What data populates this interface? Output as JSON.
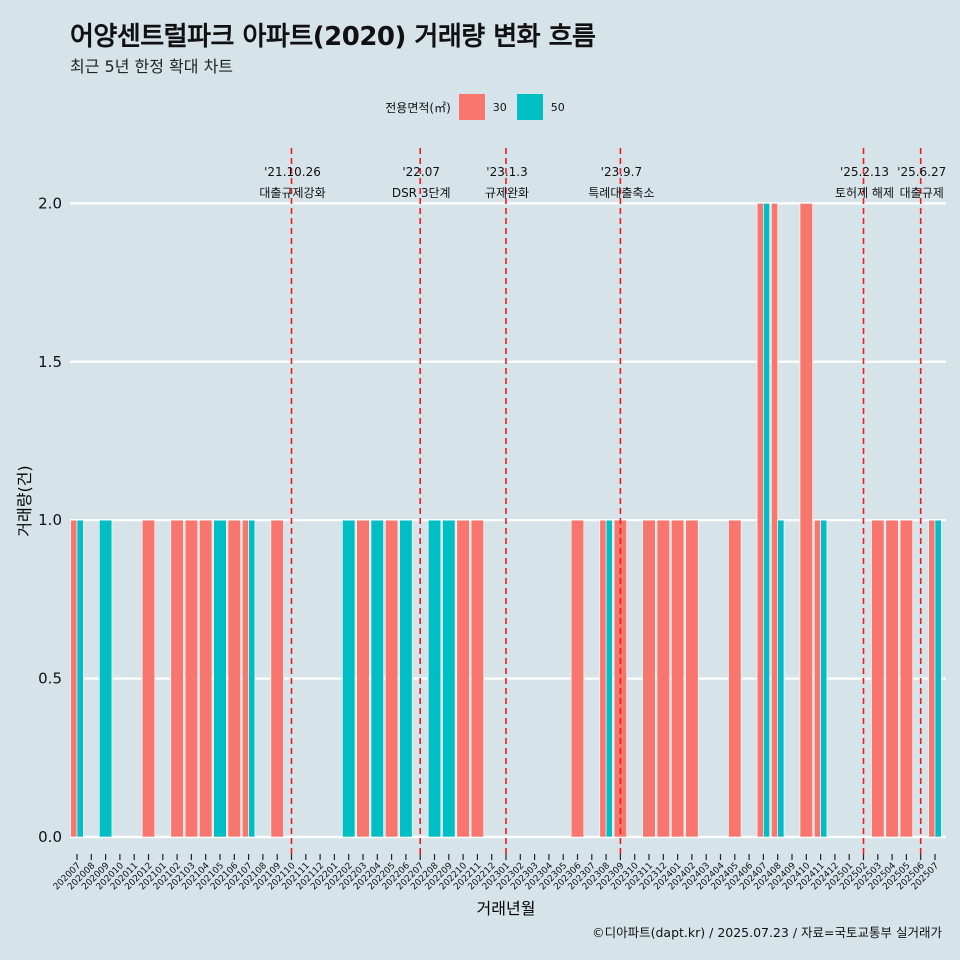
{
  "title": "어양센트럴파크 아파트(2020) 거래량 변화 흐름",
  "subtitle": "최근 5년 한정 확대 차트",
  "caption": "©디아파트(dapt.kr) / 2025.07.23 / 자료=국토교통부 실거래가",
  "legend": {
    "title": "전용면적(㎡)",
    "items": [
      {
        "label": "30",
        "color": "#f8766d"
      },
      {
        "label": "50",
        "color": "#00bfc4"
      }
    ]
  },
  "chart_data": {
    "type": "bar",
    "xlabel": "거래년월",
    "ylabel": "거래량(건)",
    "ylim": [
      -0.06,
      2.2
    ],
    "yticks": [
      0.0,
      0.5,
      1.0,
      1.5,
      2.0
    ],
    "ytick_labels": [
      "0.0",
      "0.5",
      "1.0",
      "1.5",
      "2.0"
    ],
    "grid": true,
    "legend_position": "top",
    "categories": [
      "202007",
      "202008",
      "202009",
      "202010",
      "202011",
      "202012",
      "202101",
      "202102",
      "202103",
      "202104",
      "202105",
      "202106",
      "202107",
      "202108",
      "202109",
      "202110",
      "202111",
      "202112",
      "202201",
      "202202",
      "202203",
      "202204",
      "202205",
      "202206",
      "202207",
      "202208",
      "202209",
      "202210",
      "202211",
      "202212",
      "202301",
      "202302",
      "202303",
      "202304",
      "202305",
      "202306",
      "202307",
      "202308",
      "202309",
      "202310",
      "202311",
      "202312",
      "202401",
      "202402",
      "202403",
      "202404",
      "202405",
      "202406",
      "202407",
      "202408",
      "202409",
      "202410",
      "202411",
      "202412",
      "202501",
      "202502",
      "202503",
      "202504",
      "202505",
      "202506",
      "202507"
    ],
    "series": [
      {
        "name": "30",
        "color": "#f8766d",
        "values": [
          1,
          0,
          0,
          0,
          0,
          1,
          0,
          1,
          1,
          1,
          0,
          1,
          1,
          0,
          1,
          0,
          0,
          0,
          0,
          0,
          1,
          0,
          1,
          0,
          0,
          0,
          0,
          1,
          1,
          0,
          0,
          0,
          0,
          0,
          0,
          1,
          0,
          1,
          1,
          0,
          1,
          1,
          1,
          1,
          0,
          0,
          1,
          0,
          2,
          2,
          0,
          2,
          1,
          0,
          0,
          0,
          1,
          1,
          1,
          0,
          1
        ]
      },
      {
        "name": "50",
        "color": "#00bfc4",
        "values": [
          1,
          0,
          1,
          0,
          0,
          0,
          0,
          0,
          0,
          0,
          1,
          0,
          1,
          0,
          0,
          0,
          0,
          0,
          0,
          1,
          0,
          1,
          0,
          1,
          0,
          1,
          1,
          0,
          0,
          0,
          0,
          0,
          0,
          0,
          0,
          0,
          0,
          1,
          0,
          0,
          0,
          0,
          0,
          0,
          0,
          0,
          0,
          0,
          2,
          1,
          0,
          0,
          1,
          0,
          0,
          0,
          0,
          0,
          0,
          0,
          1
        ]
      }
    ],
    "annotations": [
      {
        "date_label": "'21.10.26",
        "text": "대출규제강화",
        "x": "202110"
      },
      {
        "date_label": "'22.07",
        "text": "DSR 3단계",
        "x": "202207"
      },
      {
        "date_label": "'23.1.3",
        "text": "규제완화",
        "x": "202301"
      },
      {
        "date_label": "'23.9.7",
        "text": "특례대출축소",
        "x": "202309"
      },
      {
        "date_label": "'25.2.13",
        "text": "토허제 해제",
        "x": "202502"
      },
      {
        "date_label": "'25.6.27",
        "text": "대출규제",
        "x": "202506"
      }
    ]
  }
}
